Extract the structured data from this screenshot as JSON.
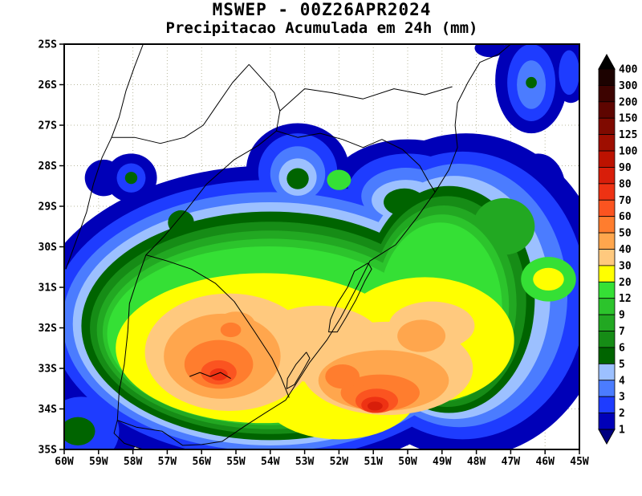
{
  "header": {
    "title_line1": "MSWEP - 00Z26APR2024",
    "title_line2": "Precipitacao Acumulada em 24h (mm)"
  },
  "axes": {
    "lat_labels": [
      "25S",
      "26S",
      "27S",
      "28S",
      "29S",
      "30S",
      "31S",
      "32S",
      "33S",
      "34S",
      "35S"
    ],
    "lon_labels": [
      "60W",
      "59W",
      "58W",
      "57W",
      "56W",
      "55W",
      "54W",
      "53W",
      "52W",
      "51W",
      "50W",
      "49W",
      "48W",
      "47W",
      "46W",
      "45W"
    ]
  },
  "legend": {
    "unit": "mm",
    "boundary_values": [
      "400",
      "300",
      "200",
      "150",
      "125",
      "100",
      "90",
      "80",
      "70",
      "60",
      "50",
      "40",
      "30",
      "20",
      "12",
      "9",
      "7",
      "6",
      "5",
      "4",
      "3",
      "2",
      "1"
    ],
    "band_colors_top_to_bottom": [
      "#1C0200",
      "#3D0300",
      "#5E0500",
      "#7F0A00",
      "#9E0E00",
      "#BC1200",
      "#D81E0A",
      "#EE3213",
      "#FB5420",
      "#FF7D2E",
      "#FFA64D",
      "#FFC97E",
      "#FFFF00",
      "#35E035",
      "#2CC42C",
      "#22A822",
      "#168C16",
      "#006400",
      "#9CC0FF",
      "#4B7CFF",
      "#1E3CFF",
      "#0000B8"
    ],
    "arrow_top_color": "#000000",
    "arrow_bottom_color": "#000080"
  },
  "map": {
    "background_color": "#ffffff",
    "grid_color": "#b8b89e",
    "frame_color": "#000000",
    "border_line_color": "#000000",
    "precip_features": [
      {
        "l": 1,
        "c": "#0000B8",
        "e": [
          54.0,
          31.8,
          6.9,
          3.8
        ]
      },
      {
        "l": 1,
        "c": "#0000B8",
        "e": [
          48.3,
          31.2,
          4.15,
          4.0
        ]
      },
      {
        "l": 1,
        "c": "#0000B8",
        "e": [
          53.2,
          28.1,
          1.5,
          1.15
        ]
      },
      {
        "l": 1,
        "c": "#0000B8",
        "e": [
          50.0,
          28.6,
          2.3,
          1.25
        ]
      },
      {
        "l": 1,
        "c": "#0000B8",
        "e": [
          58.85,
          28.3,
          0.55,
          0.45
        ]
      },
      {
        "l": 1,
        "c": "#0000B8",
        "e": [
          58.05,
          28.3,
          0.75,
          0.6
        ]
      },
      {
        "l": 1,
        "c": "#0000B8",
        "e": [
          46.4,
          25.9,
          1.05,
          1.3
        ]
      },
      {
        "l": 1,
        "c": "#0000B8",
        "e": [
          45.25,
          25.6,
          0.55,
          0.85
        ]
      },
      {
        "l": 1,
        "c": "#0000B8",
        "e": [
          47.6,
          25.1,
          0.45,
          0.22
        ]
      },
      {
        "l": 1,
        "c": "#0000B8",
        "e": [
          59.4,
          34.4,
          1.6,
          1.3
        ]
      },
      {
        "l": 1,
        "c": "#0000B8",
        "e": [
          46.2,
          28.6,
          0.8,
          0.9
        ]
      },
      {
        "l": 2,
        "c": "#1E3CFF",
        "e": [
          54.0,
          31.8,
          6.4,
          3.45
        ]
      },
      {
        "l": 2,
        "c": "#1E3CFF",
        "e": [
          48.4,
          31.2,
          3.6,
          3.55
        ]
      },
      {
        "l": 2,
        "c": "#1E3CFF",
        "e": [
          53.2,
          28.15,
          1.15,
          0.95
        ]
      },
      {
        "l": 2,
        "c": "#1E3CFF",
        "e": [
          50.0,
          28.65,
          1.75,
          0.95
        ]
      },
      {
        "l": 2,
        "c": "#1E3CFF",
        "e": [
          46.4,
          25.95,
          0.7,
          0.95
        ]
      },
      {
        "l": 2,
        "c": "#1E3CFF",
        "e": [
          58.05,
          28.3,
          0.42,
          0.36
        ]
      },
      {
        "l": 2,
        "c": "#1E3CFF",
        "e": [
          59.5,
          34.55,
          1.1,
          0.85
        ]
      },
      {
        "l": 2,
        "c": "#1E3CFF",
        "e": [
          45.3,
          25.7,
          0.3,
          0.55
        ]
      },
      {
        "l": 3,
        "c": "#4B7CFF",
        "e": [
          54.0,
          31.85,
          6.05,
          3.2
        ]
      },
      {
        "l": 3,
        "c": "#4B7CFF",
        "e": [
          48.5,
          31.2,
          3.15,
          3.25
        ]
      },
      {
        "l": 3,
        "c": "#4B7CFF",
        "e": [
          50.05,
          28.75,
          1.3,
          0.7
        ]
      },
      {
        "l": 3,
        "c": "#4B7CFF",
        "e": [
          53.2,
          28.2,
          0.8,
          0.68
        ]
      },
      {
        "l": 3,
        "c": "#4B7CFF",
        "e": [
          46.4,
          26.0,
          0.42,
          0.6
        ]
      },
      {
        "l": 4,
        "c": "#9CC0FF",
        "e": [
          54.0,
          31.9,
          5.75,
          3.0
        ]
      },
      {
        "l": 4,
        "c": "#9CC0FF",
        "e": [
          48.65,
          31.25,
          2.8,
          3.0
        ]
      },
      {
        "l": 4,
        "c": "#9CC0FF",
        "e": [
          50.05,
          28.85,
          1.0,
          0.5
        ]
      },
      {
        "l": 4,
        "c": "#9CC0FF",
        "e": [
          53.2,
          28.28,
          0.55,
          0.46
        ]
      },
      {
        "l": 5,
        "c": "#006400",
        "e": [
          54.0,
          31.95,
          5.5,
          2.82
        ]
      },
      {
        "l": 5,
        "c": "#006400",
        "e": [
          48.8,
          31.3,
          2.5,
          2.8
        ]
      },
      {
        "l": 5,
        "c": "#006400",
        "e": [
          56.6,
          29.4,
          0.38,
          0.3
        ]
      },
      {
        "l": 5,
        "c": "#006400",
        "e": [
          53.2,
          28.32,
          0.32,
          0.26
        ]
      },
      {
        "l": 5,
        "c": "#006400",
        "e": [
          58.05,
          28.3,
          0.18,
          0.15
        ]
      },
      {
        "l": 5,
        "c": "#006400",
        "e": [
          50.1,
          28.9,
          0.6,
          0.34
        ]
      },
      {
        "l": 5,
        "c": "#006400",
        "e": [
          46.4,
          25.95,
          0.16,
          0.14
        ]
      },
      {
        "l": 5,
        "c": "#006400",
        "e": [
          59.6,
          34.55,
          0.5,
          0.35
        ]
      },
      {
        "l": 6,
        "c": "#168C16",
        "e": [
          54.0,
          32.0,
          5.25,
          2.62
        ]
      },
      {
        "l": 6,
        "c": "#168C16",
        "e": [
          48.85,
          31.35,
          2.3,
          2.6
        ]
      },
      {
        "l": 7,
        "c": "#22A822",
        "e": [
          54.0,
          32.05,
          5.05,
          2.45
        ]
      },
      {
        "l": 7,
        "c": "#22A822",
        "e": [
          48.95,
          31.4,
          2.12,
          2.42
        ]
      },
      {
        "l": 7,
        "c": "#22A822",
        "e": [
          47.2,
          29.5,
          0.9,
          0.7
        ]
      },
      {
        "l": 9,
        "c": "#2CC42C",
        "e": [
          54.0,
          32.1,
          4.88,
          2.3
        ]
      },
      {
        "l": 9,
        "c": "#2CC42C",
        "e": [
          49.0,
          31.45,
          1.95,
          2.25
        ]
      },
      {
        "l": 12,
        "c": "#35E035",
        "e": [
          54.05,
          32.15,
          4.7,
          2.16
        ]
      },
      {
        "l": 12,
        "c": "#35E035",
        "e": [
          49.05,
          31.5,
          1.8,
          2.1
        ]
      },
      {
        "l": 12,
        "c": "#35E035",
        "e": [
          45.9,
          30.8,
          0.8,
          0.55
        ]
      },
      {
        "l": 12,
        "c": "#35E035",
        "e": [
          52.0,
          28.35,
          0.35,
          0.25
        ]
      },
      {
        "l": 20,
        "c": "#FFFF00",
        "e": [
          54.2,
          32.5,
          4.3,
          1.85
        ]
      },
      {
        "l": 20,
        "c": "#FFFF00",
        "e": [
          49.5,
          32.3,
          2.6,
          1.55
        ]
      },
      {
        "l": 20,
        "c": "#FFFF00",
        "e": [
          52.0,
          33.6,
          2.3,
          1.15
        ]
      },
      {
        "l": 20,
        "c": "#FFFF00",
        "e": [
          45.9,
          30.8,
          0.45,
          0.28
        ]
      },
      {
        "l": 30,
        "c": "#FFC97E",
        "e": [
          55.2,
          32.6,
          2.45,
          1.45
        ]
      },
      {
        "l": 30,
        "c": "#FFC97E",
        "e": [
          50.6,
          33.0,
          2.5,
          1.15
        ]
      },
      {
        "l": 30,
        "c": "#FFC97E",
        "e": [
          52.6,
          32.4,
          1.9,
          0.95
        ]
      },
      {
        "l": 30,
        "c": "#FFC97E",
        "e": [
          49.3,
          31.95,
          1.25,
          0.6
        ]
      },
      {
        "l": 40,
        "c": "#FFA64D",
        "e": [
          55.4,
          32.7,
          1.7,
          1.05
        ]
      },
      {
        "l": 40,
        "c": "#FFA64D",
        "e": [
          50.7,
          33.3,
          1.9,
          0.75
        ]
      },
      {
        "l": 40,
        "c": "#FFA64D",
        "e": [
          49.6,
          32.2,
          0.7,
          0.4
        ]
      },
      {
        "l": 40,
        "c": "#FFA64D",
        "e": [
          55.0,
          31.9,
          0.55,
          0.3
        ]
      },
      {
        "l": 50,
        "c": "#FF7D2E",
        "e": [
          55.5,
          32.9,
          1.0,
          0.6
        ]
      },
      {
        "l": 50,
        "c": "#FF7D2E",
        "e": [
          50.8,
          33.6,
          1.15,
          0.45
        ]
      },
      {
        "l": 50,
        "c": "#FF7D2E",
        "e": [
          51.9,
          33.2,
          0.5,
          0.3
        ]
      },
      {
        "l": 50,
        "c": "#FF7D2E",
        "e": [
          55.15,
          32.05,
          0.3,
          0.18
        ]
      },
      {
        "l": 60,
        "c": "#FB5420",
        "e": [
          55.5,
          33.1,
          0.52,
          0.3
        ]
      },
      {
        "l": 60,
        "c": "#FB5420",
        "e": [
          50.9,
          33.8,
          0.62,
          0.3
        ]
      },
      {
        "l": 70,
        "c": "#EE3213",
        "e": [
          50.95,
          33.9,
          0.4,
          0.2
        ]
      },
      {
        "l": 70,
        "c": "#EE3213",
        "e": [
          55.5,
          33.15,
          0.26,
          0.15
        ]
      },
      {
        "l": 80,
        "c": "#D81E0A",
        "e": [
          50.95,
          33.93,
          0.22,
          0.11
        ]
      }
    ]
  }
}
